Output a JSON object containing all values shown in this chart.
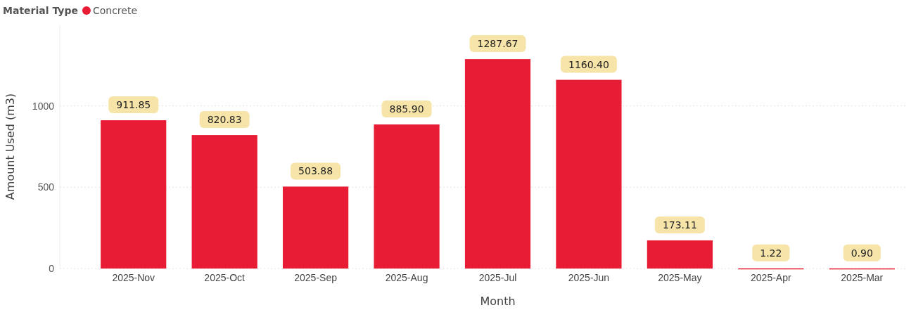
{
  "chart_data": {
    "type": "bar",
    "xlabel": "Month",
    "ylabel": "Amount Used (m3)",
    "legend_title": "Material Type",
    "categories": [
      "2025-Nov",
      "2025-Oct",
      "2025-Sep",
      "2025-Aug",
      "2025-Jul",
      "2025-Jun",
      "2025-May",
      "2025-Apr",
      "2025-Mar"
    ],
    "series": [
      {
        "name": "Concrete",
        "color": "#e81c34",
        "values": [
          911.85,
          820.83,
          503.88,
          885.9,
          1287.67,
          1160.4,
          173.11,
          1.22,
          0.9
        ],
        "value_labels": [
          "911.85",
          "820.83",
          "503.88",
          "885.90",
          "1287.67",
          "1160.40",
          "173.11",
          "1.22",
          "0.90"
        ]
      }
    ],
    "ylim": [
      0,
      1500
    ],
    "yticks": [
      0,
      500,
      1000
    ],
    "grid": "y",
    "legend": "top left"
  }
}
